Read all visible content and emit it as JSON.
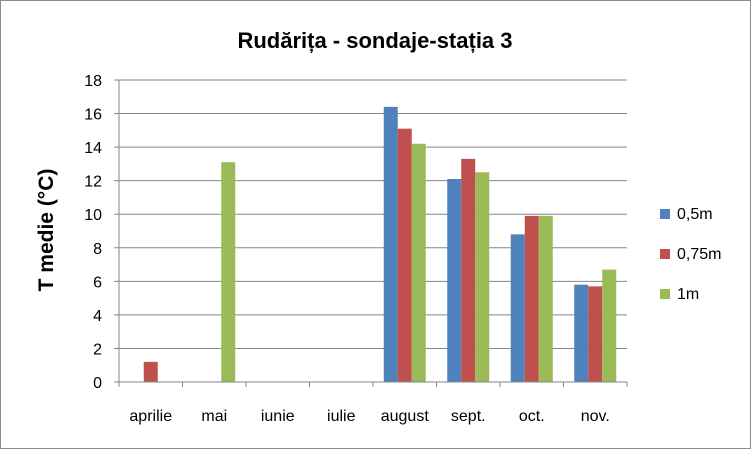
{
  "chart_data": {
    "type": "bar",
    "title": "Rudărița - sondaje-stația 3",
    "xlabel": "",
    "ylabel": "T medie (°C)",
    "ylim": [
      0,
      18
    ],
    "yticks": [
      0,
      2,
      4,
      6,
      8,
      10,
      12,
      14,
      16,
      18
    ],
    "grid": true,
    "legend_position": "right",
    "categories": [
      "aprilie",
      "mai",
      "iunie",
      "iulie",
      "august",
      "sept.",
      "oct.",
      "nov."
    ],
    "series": [
      {
        "name": "0,5m",
        "color": "#4f81bd",
        "values": [
          null,
          null,
          null,
          null,
          16.4,
          12.1,
          8.8,
          5.8
        ]
      },
      {
        "name": "0,75m",
        "color": "#c0504d",
        "values": [
          1.2,
          null,
          null,
          null,
          15.1,
          13.3,
          9.9,
          5.7
        ]
      },
      {
        "name": "1m",
        "color": "#9bbb59",
        "values": [
          null,
          13.1,
          null,
          null,
          14.2,
          12.5,
          9.9,
          6.7
        ]
      }
    ]
  }
}
